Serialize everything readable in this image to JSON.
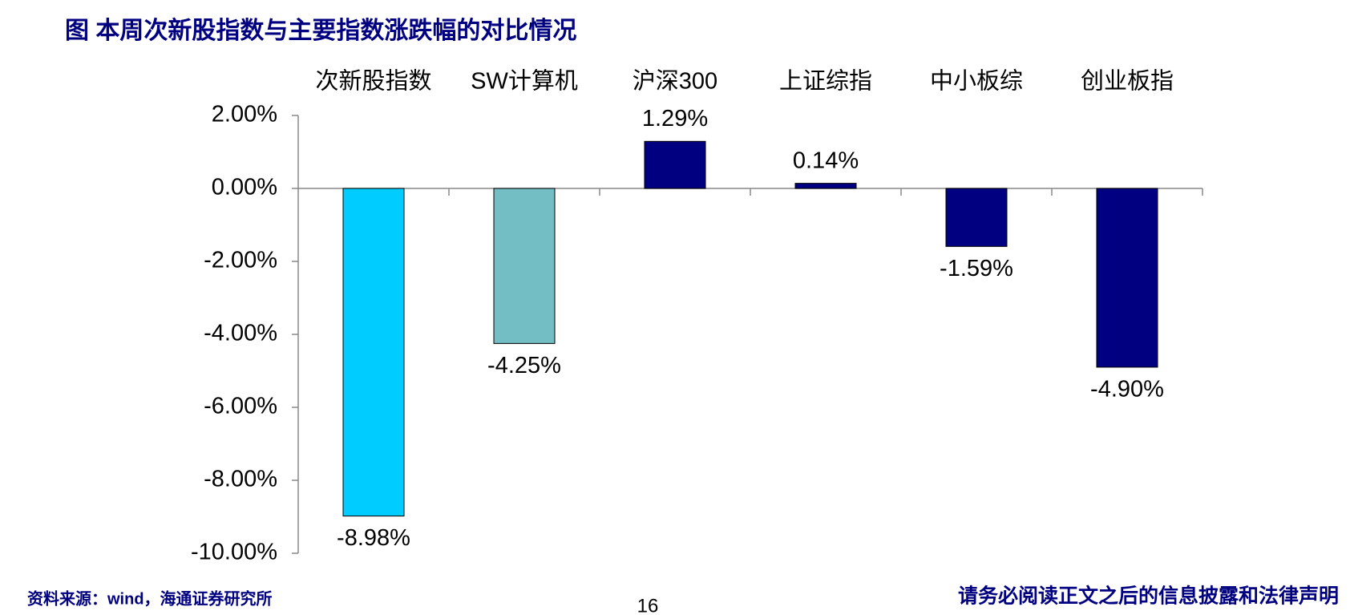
{
  "chart_data": {
    "type": "bar",
    "title": "图 本周次新股指数与主要指数涨跌幅的对比情况",
    "categories": [
      "次新股指数",
      "SW计算机",
      "沪深300",
      "上证综指",
      "中小板综",
      "创业板指"
    ],
    "values": [
      -8.98,
      -4.25,
      1.29,
      0.14,
      -1.59,
      -4.9
    ],
    "value_labels": [
      "-8.98%",
      "-4.25%",
      "1.29%",
      "0.14%",
      "-1.59%",
      "-4.90%"
    ],
    "colors": [
      "#00ccff",
      "#73bdc4",
      "#000080",
      "#000080",
      "#000080",
      "#000080"
    ],
    "ylim": [
      -10,
      2
    ],
    "yticks": [
      {
        "value": 2,
        "label": "2.00%"
      },
      {
        "value": 0,
        "label": "0.00%"
      },
      {
        "value": -2,
        "label": "-2.00%"
      },
      {
        "value": -4,
        "label": "-4.00%"
      },
      {
        "value": -6,
        "label": "-6.00%"
      },
      {
        "value": -8,
        "label": "-8.00%"
      },
      {
        "value": -10,
        "label": "-10.00%"
      }
    ],
    "grid": false
  },
  "footer": {
    "source": "资料来源：wind，海通证券研究所",
    "page": "16",
    "disclaimer": "请务必阅读正文之后的信息披露和法律声明"
  }
}
